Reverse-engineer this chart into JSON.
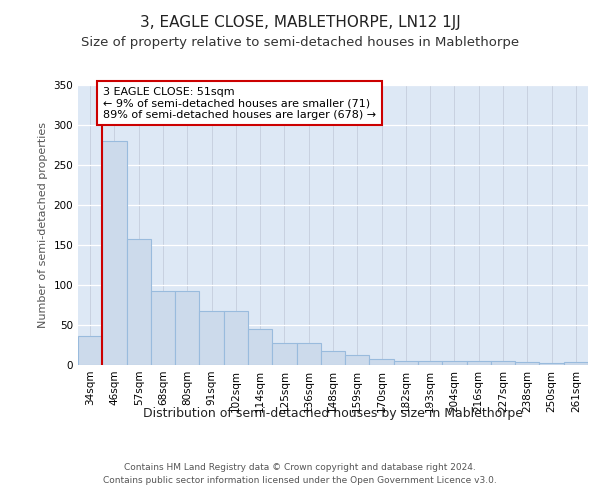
{
  "title": "3, EAGLE CLOSE, MABLETHORPE, LN12 1JJ",
  "subtitle": "Size of property relative to semi-detached houses in Mablethorpe",
  "xlabel": "Distribution of semi-detached houses by size in Mablethorpe",
  "ylabel": "Number of semi-detached properties",
  "categories": [
    "34sqm",
    "46sqm",
    "57sqm",
    "68sqm",
    "80sqm",
    "91sqm",
    "102sqm",
    "114sqm",
    "125sqm",
    "136sqm",
    "148sqm",
    "159sqm",
    "170sqm",
    "182sqm",
    "193sqm",
    "204sqm",
    "216sqm",
    "227sqm",
    "238sqm",
    "250sqm",
    "261sqm"
  ],
  "values": [
    36,
    280,
    158,
    93,
    93,
    68,
    68,
    45,
    27,
    27,
    18,
    12,
    7,
    5,
    5,
    5,
    5,
    5,
    4,
    3,
    4
  ],
  "bar_color": "#ccdaeb",
  "bar_edge_color": "#99bbdd",
  "highlight_line_color": "#cc0000",
  "annotation_text": "3 EAGLE CLOSE: 51sqm\n← 9% of semi-detached houses are smaller (71)\n89% of semi-detached houses are larger (678) →",
  "annotation_box_color": "#ffffff",
  "annotation_box_edge_color": "#cc0000",
  "ylim": [
    0,
    350
  ],
  "yticks": [
    0,
    50,
    100,
    150,
    200,
    250,
    300,
    350
  ],
  "background_color": "#dde8f5",
  "footer_line1": "Contains HM Land Registry data © Crown copyright and database right 2024.",
  "footer_line2": "Contains public sector information licensed under the Open Government Licence v3.0.",
  "title_fontsize": 11,
  "subtitle_fontsize": 9.5,
  "xlabel_fontsize": 9,
  "ylabel_fontsize": 8,
  "tick_fontsize": 7.5,
  "annotation_fontsize": 8,
  "footer_fontsize": 6.5
}
